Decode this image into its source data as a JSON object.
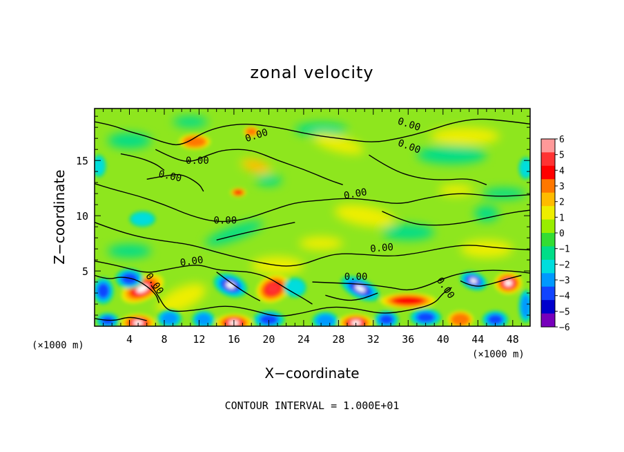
{
  "chart_data": {
    "type": "heatmap",
    "title": "zonal velocity",
    "xlabel": "X−coordinate",
    "ylabel": "Z−coordinate",
    "x_unit_left": "(×1000 m)",
    "x_unit_right": "(×1000 m)",
    "footer": "CONTOUR INTERVAL = 1.000E+01",
    "xlim": [
      0,
      50
    ],
    "ylim": [
      0,
      19.7
    ],
    "x_ticks": [
      4,
      8,
      12,
      16,
      20,
      24,
      28,
      32,
      36,
      40,
      44,
      48
    ],
    "y_ticks": [
      5,
      10,
      15
    ],
    "colorbar": {
      "ticks": [
        "6",
        "5",
        "4",
        "3",
        "2",
        "1",
        "0",
        "−1",
        "−2",
        "−3",
        "−4",
        "−5",
        "−6"
      ],
      "colors": [
        "#ff9999",
        "#ff3333",
        "#ff0000",
        "#ff7700",
        "#ffbb00",
        "#eeee00",
        "#99ee00",
        "#33dd33",
        "#00dd88",
        "#00dddd",
        "#0099ff",
        "#1144ff",
        "#0000cc",
        "#7700bb"
      ]
    },
    "contour_label": "0.00",
    "contour_labels": [
      {
        "x": 36,
        "y": 18.0,
        "angle": 18
      },
      {
        "x": 36,
        "y": 16.0,
        "angle": 20
      },
      {
        "x": 18.7,
        "y": 17.0,
        "angle": -18
      },
      {
        "x": 11.8,
        "y": 14.7,
        "angle": 0
      },
      {
        "x": 8.6,
        "y": 13.3,
        "angle": 12
      },
      {
        "x": 30,
        "y": 11.7,
        "angle": -10
      },
      {
        "x": 15,
        "y": 9.3,
        "angle": 0
      },
      {
        "x": 33,
        "y": 6.8,
        "angle": -5
      },
      {
        "x": 11.2,
        "y": 5.6,
        "angle": -8
      },
      {
        "x": 30,
        "y": 4.2,
        "angle": 0
      },
      {
        "x": 6.6,
        "y": 3.7,
        "angle": 55
      },
      {
        "x": 40,
        "y": 3.3,
        "angle": 55
      }
    ],
    "features": [
      {
        "x": 5.5,
        "y": 3.4,
        "v": 6.5,
        "rx": 2.6,
        "ry": 1.1,
        "angle": 25
      },
      {
        "x": 4,
        "y": 4.3,
        "v": -5.0,
        "rx": 1.6,
        "ry": 0.9,
        "angle": 0
      },
      {
        "x": 1,
        "y": 3.2,
        "v": -4.5,
        "rx": 1.2,
        "ry": 1.2,
        "angle": 0
      },
      {
        "x": 5,
        "y": 0.3,
        "v": 6.5,
        "rx": 2.0,
        "ry": 0.8,
        "angle": 0
      },
      {
        "x": 1.5,
        "y": 0.5,
        "v": -5.0,
        "rx": 1.3,
        "ry": 0.7,
        "angle": 0
      },
      {
        "x": 8.6,
        "y": 0.7,
        "v": -4.0,
        "rx": 1.4,
        "ry": 0.8,
        "angle": 0
      },
      {
        "x": 15.6,
        "y": 3.7,
        "v": -6.5,
        "rx": 2.0,
        "ry": 1.0,
        "angle": -20
      },
      {
        "x": 16,
        "y": 0.3,
        "v": 6.3,
        "rx": 2.1,
        "ry": 0.8,
        "angle": 0
      },
      {
        "x": 12.5,
        "y": 0.6,
        "v": -3.5,
        "rx": 1.3,
        "ry": 0.8,
        "angle": 0
      },
      {
        "x": 20.5,
        "y": 3.4,
        "v": 6.0,
        "rx": 2.0,
        "ry": 1.2,
        "angle": 25
      },
      {
        "x": 20,
        "y": 0.6,
        "v": -5.0,
        "rx": 1.8,
        "ry": 0.8,
        "angle": 0
      },
      {
        "x": 23,
        "y": 3.5,
        "v": -3.0,
        "rx": 1.3,
        "ry": 0.9,
        "angle": 0
      },
      {
        "x": 30.5,
        "y": 3.4,
        "v": -6.5,
        "rx": 2.4,
        "ry": 0.9,
        "angle": -25
      },
      {
        "x": 30,
        "y": 0.3,
        "v": 6.5,
        "rx": 2.0,
        "ry": 0.8,
        "angle": 0
      },
      {
        "x": 26.5,
        "y": 0.5,
        "v": -4.0,
        "rx": 1.5,
        "ry": 0.8,
        "angle": 0
      },
      {
        "x": 33.5,
        "y": 0.6,
        "v": -5.0,
        "rx": 1.4,
        "ry": 0.8,
        "angle": 0
      },
      {
        "x": 36,
        "y": 2.3,
        "v": 4.5,
        "rx": 3.2,
        "ry": 0.7,
        "angle": 0
      },
      {
        "x": 38,
        "y": 0.8,
        "v": -4.5,
        "rx": 1.8,
        "ry": 0.8,
        "angle": 0
      },
      {
        "x": 43.5,
        "y": 4.1,
        "v": -6.5,
        "rx": 1.6,
        "ry": 0.8,
        "angle": -20
      },
      {
        "x": 47.5,
        "y": 3.9,
        "v": 6.5,
        "rx": 1.6,
        "ry": 1.0,
        "angle": 0
      },
      {
        "x": 42,
        "y": 0.6,
        "v": 3.5,
        "rx": 1.5,
        "ry": 0.8,
        "angle": 0
      },
      {
        "x": 46,
        "y": 0.6,
        "v": -5.0,
        "rx": 1.5,
        "ry": 0.8,
        "angle": 0
      },
      {
        "x": 49.5,
        "y": 1.8,
        "v": -4.0,
        "rx": 0.8,
        "ry": 1.5,
        "angle": 0
      },
      {
        "x": 10,
        "y": 2.5,
        "v": 1.5,
        "rx": 3.0,
        "ry": 1.0,
        "angle": 25
      },
      {
        "x": 11.5,
        "y": 16.7,
        "v": 3.5,
        "rx": 1.8,
        "ry": 0.7,
        "angle": 0
      },
      {
        "x": 18.5,
        "y": 14.5,
        "v": 2.5,
        "rx": 1.8,
        "ry": 0.6,
        "angle": -15
      },
      {
        "x": 18,
        "y": 17.6,
        "v": 3.5,
        "rx": 0.9,
        "ry": 0.5,
        "angle": 0
      },
      {
        "x": 16.5,
        "y": 12.1,
        "v": 5.0,
        "rx": 0.9,
        "ry": 0.4,
        "angle": 0
      },
      {
        "x": 20,
        "y": 13.2,
        "v": -2.0,
        "rx": 1.5,
        "ry": 0.5,
        "angle": 0
      },
      {
        "x": 11,
        "y": 18.5,
        "v": -2.0,
        "rx": 2.0,
        "ry": 0.5,
        "angle": 0
      },
      {
        "x": 26,
        "y": 17.8,
        "v": -2.0,
        "rx": 3.0,
        "ry": 0.6,
        "angle": 0
      },
      {
        "x": 0.5,
        "y": 14.5,
        "v": -3.0,
        "rx": 0.8,
        "ry": 1.0,
        "angle": 0
      },
      {
        "x": 49.5,
        "y": 14.3,
        "v": -3.0,
        "rx": 0.8,
        "ry": 1.0,
        "angle": 0
      },
      {
        "x": 5.5,
        "y": 9.7,
        "v": -3.0,
        "rx": 1.5,
        "ry": 0.7,
        "angle": 0
      },
      {
        "x": 16,
        "y": 8.4,
        "v": -2.0,
        "rx": 3.5,
        "ry": 0.6,
        "angle": 20
      },
      {
        "x": 21,
        "y": 5.5,
        "v": 2.0,
        "rx": 3.0,
        "ry": 0.8,
        "angle": 0
      },
      {
        "x": 31,
        "y": 10.0,
        "v": 2.0,
        "rx": 3.5,
        "ry": 0.9,
        "angle": -10
      },
      {
        "x": 36,
        "y": 8.5,
        "v": -1.8,
        "rx": 3.0,
        "ry": 0.7,
        "angle": 0
      },
      {
        "x": 45,
        "y": 10.2,
        "v": -2.0,
        "rx": 1.4,
        "ry": 0.7,
        "angle": 0
      },
      {
        "x": 41,
        "y": 15.5,
        "v": -1.8,
        "rx": 4.0,
        "ry": 0.8,
        "angle": 0
      },
      {
        "x": 42.5,
        "y": 17.2,
        "v": 1.5,
        "rx": 4.0,
        "ry": 0.8,
        "angle": 0
      },
      {
        "x": 28,
        "y": 16.5,
        "v": 1.6,
        "rx": 3.0,
        "ry": 0.7,
        "angle": -15
      },
      {
        "x": 45,
        "y": 7.0,
        "v": 1.5,
        "rx": 3.0,
        "ry": 0.8,
        "angle": 0
      },
      {
        "x": 4,
        "y": 16.8,
        "v": -1.5,
        "rx": 2.5,
        "ry": 0.7,
        "angle": 0
      },
      {
        "x": 4,
        "y": 6.8,
        "v": -1.8,
        "rx": 2.5,
        "ry": 0.6,
        "angle": 0
      },
      {
        "x": 26,
        "y": 7.5,
        "v": 1.5,
        "rx": 2.5,
        "ry": 0.6,
        "angle": 0
      },
      {
        "x": 41.5,
        "y": 12.3,
        "v": 1.8,
        "rx": 2.0,
        "ry": 0.5,
        "angle": 0
      },
      {
        "x": 47,
        "y": 12.0,
        "v": -1.5,
        "rx": 2.5,
        "ry": 0.5,
        "angle": 0
      }
    ],
    "contours": [
      [
        [
          0,
          18.5
        ],
        [
          2,
          18.2
        ],
        [
          4,
          17.6
        ],
        [
          6,
          17.2
        ],
        [
          8,
          16.6
        ],
        [
          10,
          16.3
        ],
        [
          13,
          17.8
        ],
        [
          17,
          18.4
        ],
        [
          21,
          18.0
        ],
        [
          25,
          17.3
        ],
        [
          29,
          16.9
        ],
        [
          32,
          16.6
        ],
        [
          35,
          17.0
        ],
        [
          38,
          17.6
        ],
        [
          41,
          18.4
        ],
        [
          44,
          18.8
        ],
        [
          47,
          18.6
        ],
        [
          50,
          18.3
        ]
      ],
      [
        [
          7,
          16.0
        ],
        [
          9,
          15.2
        ],
        [
          11,
          14.8
        ],
        [
          13,
          15.5
        ],
        [
          15,
          16.0
        ],
        [
          18,
          16.0
        ],
        [
          21,
          15.0
        ],
        [
          24,
          14.2
        ],
        [
          27,
          13.2
        ],
        [
          28.5,
          12.8
        ]
      ],
      [
        [
          6,
          13.3
        ],
        [
          8,
          13.6
        ],
        [
          10,
          13.8
        ],
        [
          12,
          12.9
        ],
        [
          12.5,
          12.2
        ]
      ],
      [
        [
          0,
          12.9
        ],
        [
          2,
          12.4
        ],
        [
          5,
          11.8
        ],
        [
          8,
          11.0
        ],
        [
          11,
          10.0
        ],
        [
          14,
          9.4
        ],
        [
          17,
          9.6
        ],
        [
          20,
          10.4
        ],
        [
          23,
          11.2
        ],
        [
          26,
          11.4
        ],
        [
          29,
          11.6
        ],
        [
          32,
          11.4
        ],
        [
          35,
          11.0
        ],
        [
          38,
          11.6
        ],
        [
          42,
          12.1
        ],
        [
          46,
          11.7
        ],
        [
          50,
          11.9
        ]
      ],
      [
        [
          0,
          9.4
        ],
        [
          2,
          8.8
        ],
        [
          5,
          8.1
        ],
        [
          8,
          7.7
        ],
        [
          11,
          7.4
        ],
        [
          14,
          6.7
        ],
        [
          17,
          6.1
        ],
        [
          20,
          5.6
        ],
        [
          22,
          5.4
        ],
        [
          24,
          5.6
        ],
        [
          26,
          6.2
        ],
        [
          28,
          6.6
        ],
        [
          31,
          6.5
        ],
        [
          34,
          6.3
        ],
        [
          37,
          6.6
        ],
        [
          40,
          7.1
        ],
        [
          43,
          7.4
        ],
        [
          46,
          7.1
        ],
        [
          50,
          6.9
        ]
      ],
      [
        [
          0,
          5.9
        ],
        [
          2,
          5.6
        ],
        [
          4,
          5.2
        ],
        [
          6,
          4.8
        ],
        [
          8,
          5.1
        ],
        [
          10,
          5.4
        ],
        [
          12,
          5.6
        ],
        [
          14,
          5.1
        ],
        [
          16,
          5.0
        ],
        [
          18,
          4.9
        ],
        [
          20,
          4.4
        ],
        [
          22,
          3.4
        ],
        [
          24,
          2.5
        ],
        [
          25,
          2.0
        ]
      ],
      [
        [
          25,
          4.0
        ],
        [
          28,
          3.9
        ],
        [
          31,
          3.8
        ],
        [
          34,
          3.5
        ],
        [
          36,
          3.2
        ],
        [
          38,
          3.6
        ],
        [
          40,
          4.3
        ],
        [
          42,
          4.8
        ],
        [
          45,
          5.1
        ],
        [
          48,
          5.0
        ],
        [
          50,
          4.8
        ]
      ],
      [
        [
          6.5,
          3.7
        ],
        [
          7.2,
          2.9
        ],
        [
          8.2,
          1.5
        ],
        [
          9.5,
          1.3
        ],
        [
          12,
          1.5
        ],
        [
          15,
          1.9
        ],
        [
          18,
          1.5
        ],
        [
          21,
          0.8
        ],
        [
          24,
          1.2
        ],
        [
          27,
          1.8
        ],
        [
          30,
          1.6
        ],
        [
          33,
          1.1
        ],
        [
          36,
          1.4
        ],
        [
          39,
          2.0
        ],
        [
          40,
          3.0
        ],
        [
          41,
          3.5
        ]
      ],
      [
        [
          0,
          4.6
        ],
        [
          1.5,
          4.2
        ],
        [
          3,
          4.5
        ],
        [
          5,
          4.2
        ],
        [
          7,
          3.0
        ],
        [
          7.4,
          2.1
        ]
      ],
      [
        [
          0,
          0.7
        ],
        [
          2,
          0.4
        ],
        [
          4,
          0.9
        ],
        [
          6,
          0.5
        ]
      ],
      [
        [
          14,
          4.9
        ],
        [
          16,
          3.7
        ],
        [
          18,
          2.7
        ],
        [
          19,
          2.3
        ]
      ],
      [
        [
          26.5,
          2.8
        ],
        [
          28.5,
          2.3
        ],
        [
          30.5,
          2.4
        ],
        [
          32.5,
          3.0
        ]
      ],
      [
        [
          42,
          4.1
        ],
        [
          43.5,
          3.5
        ],
        [
          45.5,
          3.8
        ],
        [
          47.5,
          4.3
        ],
        [
          49,
          4.6
        ]
      ],
      [
        [
          31.5,
          15.5
        ],
        [
          34,
          14.2
        ],
        [
          37,
          13.4
        ],
        [
          40,
          13.2
        ],
        [
          43,
          13.4
        ],
        [
          45,
          12.8
        ]
      ],
      [
        [
          33,
          10.4
        ],
        [
          36,
          9.3
        ],
        [
          39,
          9.1
        ],
        [
          42,
          9.3
        ],
        [
          45,
          9.8
        ],
        [
          48,
          10.3
        ],
        [
          50,
          10.5
        ]
      ],
      [
        [
          3,
          15.6
        ],
        [
          5,
          15.3
        ],
        [
          7,
          14.7
        ],
        [
          8,
          14.1
        ]
      ],
      [
        [
          14,
          7.8
        ],
        [
          17,
          8.4
        ],
        [
          20,
          8.9
        ],
        [
          23,
          9.4
        ]
      ]
    ]
  }
}
